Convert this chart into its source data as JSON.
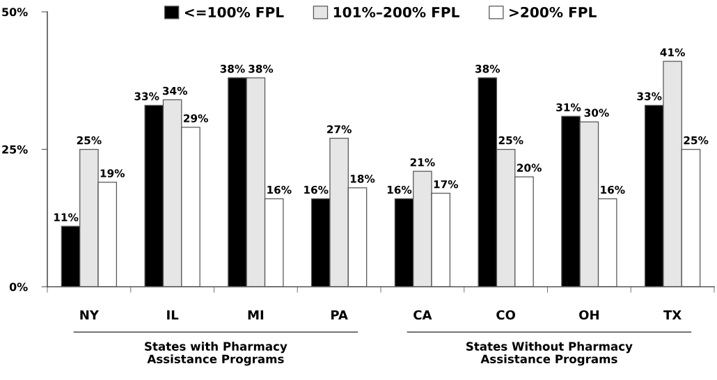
{
  "chart_data": {
    "type": "bar",
    "categories": [
      "NY",
      "IL",
      "MI",
      "PA",
      "CA",
      "CO",
      "OH",
      "TX"
    ],
    "series": [
      {
        "name": "<=100% FPL",
        "color": "#000000",
        "values": [
          11,
          33,
          38,
          16,
          16,
          38,
          31,
          33
        ],
        "value_labels": [
          "11%",
          "33%",
          "38%",
          "16%",
          "16%",
          "38%",
          "31%",
          "33%"
        ]
      },
      {
        "name": "101%–200% FPL",
        "color": "#e6e6e6",
        "values": [
          25,
          34,
          38,
          27,
          21,
          25,
          30,
          41
        ],
        "value_labels": [
          "25%",
          "34%",
          "38%",
          "27%",
          "21%",
          "25%",
          "30%",
          "41%"
        ]
      },
      {
        "name": ">200% FPL",
        "color": "#ffffff",
        "values": [
          19,
          29,
          16,
          18,
          17,
          20,
          16,
          25
        ],
        "value_labels": [
          "19%",
          "29%",
          "16%",
          "18%",
          "17%",
          "20%",
          "16%",
          "25%"
        ]
      }
    ],
    "ylim": [
      0,
      50
    ],
    "yticks": [
      {
        "value": 0,
        "label": "0%"
      },
      {
        "value": 25,
        "label": "25%"
      },
      {
        "value": 50,
        "label": "50%"
      }
    ],
    "annotations": [
      "States with Pharmacy\nAssistance Programs",
      "States Without Pharmacy\nAssistance Programs"
    ],
    "legend": "top"
  }
}
